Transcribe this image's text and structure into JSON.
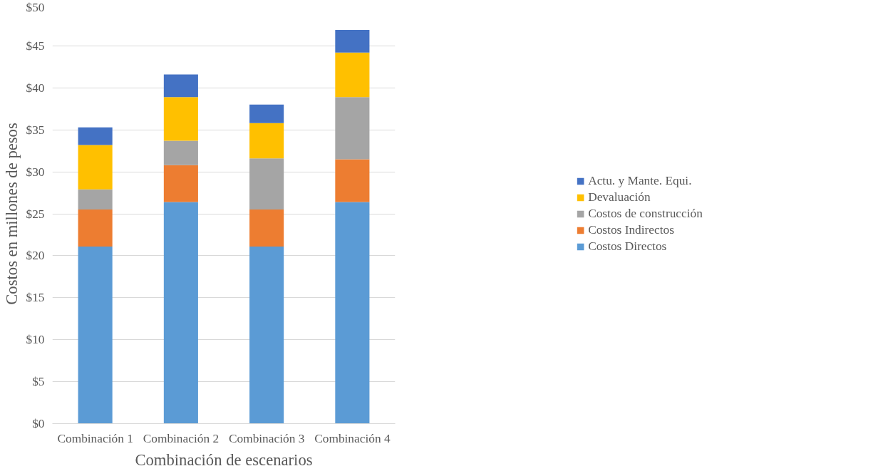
{
  "chart_data": {
    "type": "bar",
    "stacked": true,
    "xlabel": "Combinación de escenarios",
    "ylabel": "Costos en millones de pesos",
    "categories": [
      "Combinación 1",
      "Combinación 2",
      "Combinación 3",
      "Combinación 4"
    ],
    "series": [
      {
        "name": "Costos Directos",
        "color": "#5b9bd5",
        "values": [
          21.1,
          26.4,
          21.1,
          26.4
        ]
      },
      {
        "name": "Costos Indirectos",
        "color": "#ed7d31",
        "values": [
          4.4,
          4.4,
          4.4,
          5.1
        ]
      },
      {
        "name": "Costos de construcción",
        "color": "#a5a5a5",
        "values": [
          2.4,
          2.9,
          6.1,
          7.4
        ]
      },
      {
        "name": "Devaluación",
        "color": "#ffc000",
        "values": [
          5.3,
          5.2,
          4.2,
          5.3
        ]
      },
      {
        "name": "Actu. y Mante. Equi.",
        "color": "#4472c4",
        "values": [
          2.1,
          2.7,
          2.2,
          2.7
        ]
      }
    ],
    "ylim": [
      0,
      50
    ],
    "yticks": [
      {
        "value": 0,
        "label": "$0"
      },
      {
        "value": 5,
        "label": "$5"
      },
      {
        "value": 10,
        "label": "$10"
      },
      {
        "value": 15,
        "label": "$15"
      },
      {
        "value": 20,
        "label": "$20"
      },
      {
        "value": 25,
        "label": "$25"
      },
      {
        "value": 30,
        "label": "$30"
      },
      {
        "value": 35,
        "label": "$35"
      },
      {
        "value": 40,
        "label": "$40"
      },
      {
        "value": 45,
        "label": "$45"
      },
      {
        "value": 50,
        "label": "$50"
      }
    ],
    "grid": "y",
    "legend": "right"
  }
}
